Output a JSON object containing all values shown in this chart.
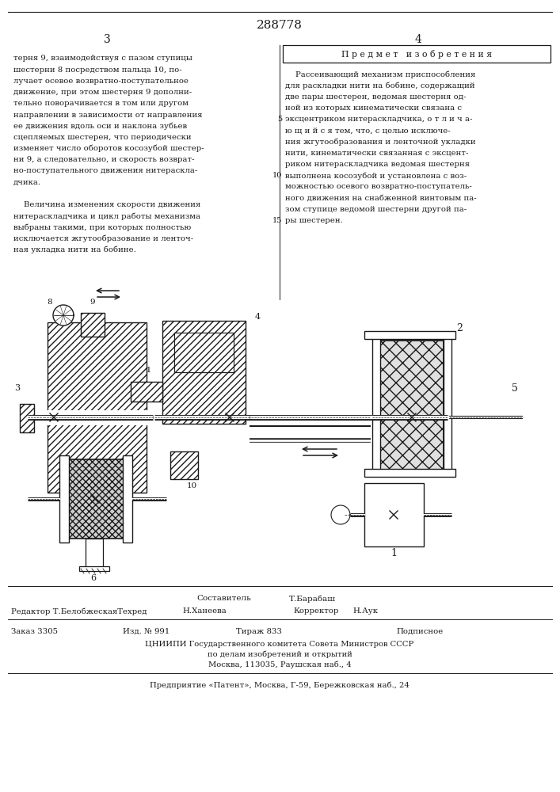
{
  "patent_number": "288778",
  "page_numbers": [
    "3",
    "4"
  ],
  "predmet_header": "П р е д м е т   и з о б р е т е н и я",
  "left_col_text": [
    "терня 9, взаимодействуя с пазом ступицы",
    "шестерни 8 посредством пальца 10, по-",
    "лучает осевое возвратно-поступательное",
    "движение, при этом шестерня 9 дополни-",
    "тельно поворачивается в том или другом",
    "направлении в зависимости от направления",
    "ее движения вдоль оси и наклона зубьев",
    "сцепляемых шестерен, что периодически",
    "изменяет число оборотов косозубой шестер-",
    "ни 9, а следовательно, и скорость возврат-",
    "но-поступательного движения нитераскла-",
    "дчика.",
    "",
    "    Величина изменения скорости движения",
    "нитераскладчика и цикл работы механизма",
    "выбраны такими, при которых полностью",
    "исключается жгутообразование и ленточ-",
    "ная укладка нити на бобине."
  ],
  "right_col_text": [
    "    Рассеивающий механизм приспособления",
    "для раскладки нити на бобине, содержащий",
    "две пары шестерен, ведомая шестерня од-",
    "ной из которых кинематически связана с",
    "эксцентриком нитераскладчика, о т л и ч а-",
    "ю щ и й с я тем, что, с целью исключе-",
    "ния жгутообразования и ленточной укладки",
    "нити, кинематически связанная с эксцент-",
    "риком нитераскладчика ведомая шестерня",
    "выполнена косозубой и установлена с воз-",
    "можностью осевого возвратно-поступатель-",
    "ного движения на снабженной винтовым па-",
    "зом ступице ведомой шестерни другой па-",
    "ры шестерен."
  ],
  "line_num_map": {
    "4": "5",
    "9": "10",
    "13": "15"
  },
  "sestavitel_label": "Составитель",
  "sestavitel_name": "Т.Барабаш",
  "redaktor_text": "Редактор Т.БелобжескаяТехред",
  "tehred_name": "Н.Ханеева",
  "korrektor_label": "Корректор",
  "korrektor_name": "Н.Аук",
  "zakaz_label": "Заказ",
  "zakaz_num": "3305",
  "izd_label": "Изд. №",
  "izd_num": "991",
  "tirazh_label": "Тираж",
  "tirazh_num": "833",
  "podpisnoe": "Подписное",
  "tsniipii_line1": "ЦНИИПИ Государственного комитета Совета Министров СССР",
  "tsniipii_line2": "по делам изобретений и открытий",
  "tsniipii_line3": "Москва, 113035, Раушская наб., 4",
  "predpriyatie": "Предприятие «Патент», Москва, Г-59, Бережковская наб., 24",
  "bg_color": "#ffffff",
  "text_color": "#1a1a1a"
}
